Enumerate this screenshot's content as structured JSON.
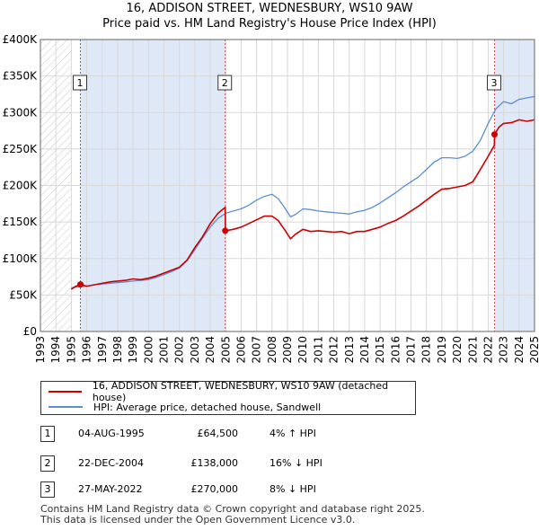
{
  "header": {
    "title_line1": "16, ADDISON STREET, WEDNESBURY, WS10 9AW",
    "title_line2": "Price paid vs. HM Land Registry's House Price Index (HPI)"
  },
  "colors": {
    "property": "#cc0000",
    "hpi": "#5b8fd0",
    "shade": "#dfe8f6",
    "grid": "#d8d8d8",
    "marker_line": "#dd4444"
  },
  "chart_data": {
    "type": "line",
    "title": "Price paid vs. HM Land Registry's House Price Index (HPI)",
    "xlabel": "",
    "ylabel": "",
    "xlim": [
      1993,
      2025
    ],
    "ylim": [
      0,
      400000
    ],
    "yticks": [
      0,
      50000,
      100000,
      150000,
      200000,
      250000,
      300000,
      350000,
      400000
    ],
    "ytick_labels": [
      "£0",
      "£50K",
      "£100K",
      "£150K",
      "£200K",
      "£250K",
      "£300K",
      "£350K",
      "£400K"
    ],
    "xticks": [
      1993,
      1994,
      1995,
      1996,
      1997,
      1998,
      1999,
      2000,
      2001,
      2002,
      2003,
      2004,
      2005,
      2006,
      2007,
      2008,
      2009,
      2010,
      2011,
      2012,
      2013,
      2014,
      2015,
      2016,
      2017,
      2018,
      2019,
      2020,
      2021,
      2022,
      2023,
      2024,
      2025
    ],
    "grid": true,
    "series": [
      {
        "name": "16, ADDISON STREET, WEDNESBURY, WS10 9AW (detached house)",
        "x": [
          1995.0,
          1995.3,
          1995.59,
          1996.0,
          1996.5,
          1997.0,
          1997.5,
          1998.0,
          1998.5,
          1999.0,
          1999.5,
          2000.0,
          2000.5,
          2001.0,
          2001.5,
          2002.0,
          2002.5,
          2003.0,
          2003.5,
          2004.0,
          2004.5,
          2004.97,
          2004.98,
          2005.5,
          2006.0,
          2006.5,
          2007.0,
          2007.5,
          2008.0,
          2008.4,
          2008.8,
          2009.2,
          2009.5,
          2010.0,
          2010.5,
          2011.0,
          2011.5,
          2012.0,
          2012.5,
          2013.0,
          2013.5,
          2014.0,
          2014.5,
          2015.0,
          2015.5,
          2016.0,
          2016.5,
          2017.0,
          2017.5,
          2018.0,
          2018.5,
          2019.0,
          2019.5,
          2020.0,
          2020.5,
          2021.0,
          2021.5,
          2022.0,
          2022.4,
          2022.41,
          2022.7,
          2023.0,
          2023.5,
          2024.0,
          2024.5,
          2025.0
        ],
        "values": [
          58000,
          62000,
          64500,
          62000,
          64000,
          66000,
          68000,
          69000,
          70000,
          72000,
          71000,
          73000,
          76000,
          80000,
          84000,
          88000,
          98000,
          115000,
          130000,
          148000,
          162000,
          170000,
          138000,
          140000,
          143000,
          148000,
          153000,
          158000,
          158000,
          152000,
          140000,
          127000,
          133000,
          140000,
          137000,
          138000,
          137000,
          136000,
          137000,
          134000,
          137000,
          137000,
          140000,
          143000,
          148000,
          152000,
          158000,
          165000,
          172000,
          180000,
          188000,
          195000,
          196000,
          198000,
          200000,
          205000,
          222000,
          240000,
          255000,
          270000,
          280000,
          285000,
          286000,
          290000,
          288000,
          290000
        ]
      },
      {
        "name": "HPI: Average price, detached house, Sandwell",
        "x": [
          1995.0,
          1995.5,
          1996.0,
          1996.5,
          1997.0,
          1997.5,
          1998.0,
          1998.5,
          1999.0,
          1999.5,
          2000.0,
          2000.5,
          2001.0,
          2001.5,
          2002.0,
          2002.5,
          2003.0,
          2003.5,
          2004.0,
          2004.5,
          2005.0,
          2005.5,
          2006.0,
          2006.5,
          2007.0,
          2007.5,
          2008.0,
          2008.4,
          2008.8,
          2009.2,
          2009.5,
          2010.0,
          2010.5,
          2011.0,
          2011.5,
          2012.0,
          2012.5,
          2013.0,
          2013.5,
          2014.0,
          2014.5,
          2015.0,
          2015.5,
          2016.0,
          2016.5,
          2017.0,
          2017.5,
          2018.0,
          2018.5,
          2019.0,
          2019.5,
          2020.0,
          2020.5,
          2021.0,
          2021.5,
          2022.0,
          2022.5,
          2023.0,
          2023.5,
          2024.0,
          2024.5,
          2025.0
        ],
        "values": [
          60000,
          61000,
          62000,
          64000,
          65000,
          66000,
          67000,
          68000,
          69000,
          70000,
          71000,
          74000,
          78000,
          82000,
          87000,
          97000,
          112000,
          128000,
          143000,
          155000,
          162000,
          165000,
          168000,
          173000,
          180000,
          185000,
          188000,
          182000,
          170000,
          157000,
          160000,
          168000,
          167000,
          165000,
          164000,
          163000,
          162000,
          161000,
          164000,
          166000,
          170000,
          176000,
          183000,
          190000,
          198000,
          205000,
          212000,
          222000,
          232000,
          238000,
          238000,
          237000,
          240000,
          247000,
          262000,
          285000,
          305000,
          315000,
          312000,
          318000,
          320000,
          322000
        ]
      }
    ],
    "annotations": [
      {
        "label": "1",
        "x": 1995.59,
        "value": 64500
      },
      {
        "label": "2",
        "x": 2004.97,
        "value": 138000
      },
      {
        "label": "3",
        "x": 2022.41,
        "value": 270000
      }
    ]
  },
  "legend": {
    "property_label": "16, ADDISON STREET, WEDNESBURY, WS10 9AW (detached house)",
    "hpi_label": "HPI: Average price, detached house, Sandwell"
  },
  "sales": [
    {
      "num": "1",
      "date": "04-AUG-1995",
      "price": "£64,500",
      "hpi": "4% ↑ HPI"
    },
    {
      "num": "2",
      "date": "22-DEC-2004",
      "price": "£138,000",
      "hpi": "16% ↓ HPI"
    },
    {
      "num": "3",
      "date": "27-MAY-2022",
      "price": "£270,000",
      "hpi": "8% ↓ HPI"
    }
  ],
  "footer": {
    "line1": "Contains HM Land Registry data © Crown copyright and database right 2025.",
    "line2": "This data is licensed under the Open Government Licence v3.0."
  }
}
